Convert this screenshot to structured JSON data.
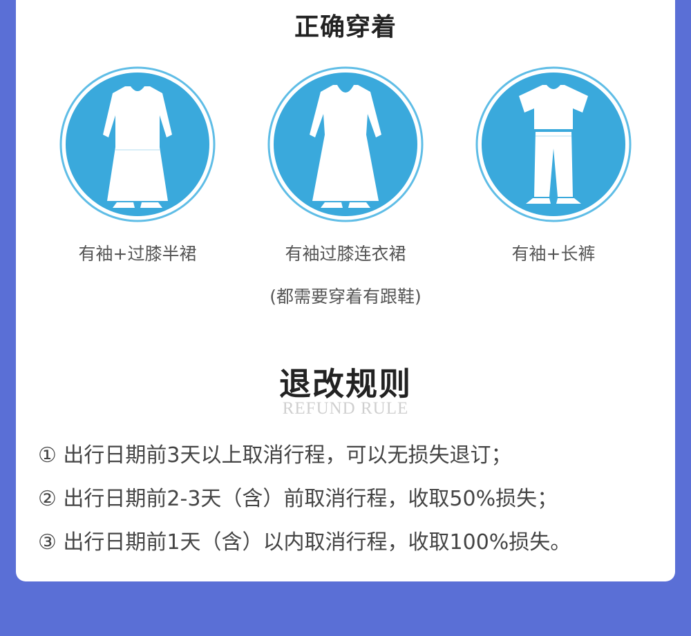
{
  "dress_section": {
    "title": "正确穿着",
    "items": [
      {
        "label": "有袖+过膝半裙",
        "icon": "long-sleeve-skirt-icon"
      },
      {
        "label": "有袖过膝连衣裙",
        "icon": "long-sleeve-dress-icon"
      },
      {
        "label": "有袖+长裤",
        "icon": "sleeve-trousers-icon"
      }
    ],
    "note": "(都需要穿着有跟鞋)"
  },
  "refund_section": {
    "title": "退改规则",
    "subtitle": "REFUND RULE",
    "rules": [
      "① 出行日期前3天以上取消行程，可以无损失退订；",
      "② 出行日期前2-3天（含）前取消行程，收取50%损失；",
      "③ 出行日期前1天（含）以内取消行程，收取100%损失。"
    ]
  },
  "colors": {
    "background": "#5a6fd6",
    "card": "#ffffff",
    "icon_fill": "#3aa9dc",
    "icon_ring": "#5fbde6"
  }
}
